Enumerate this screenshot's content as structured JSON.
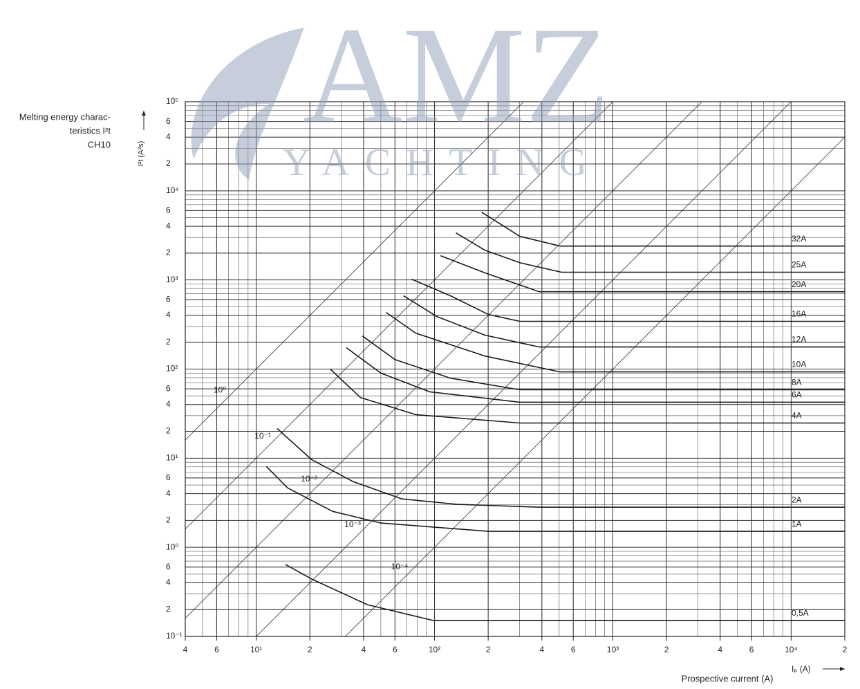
{
  "chart_data": {
    "type": "line",
    "title_lines": [
      "Melting energy charac-",
      "teristics I²t",
      "CH10"
    ],
    "ylabel": "I²t (A²s)",
    "xlabel": "Iₚ (A)",
    "xlabel_note": "Prospective current (A)",
    "watermark": {
      "text": "AMZ",
      "subtext": "YACHTING"
    },
    "xscale": "log",
    "yscale": "log",
    "xlim": [
      4,
      20000
    ],
    "ylim": [
      0.1,
      100000
    ],
    "grid": true,
    "minor_grid": true,
    "xticks": [
      4,
      6,
      {
        "value": 10,
        "label": "10¹"
      },
      {
        "value": 20,
        "label": "2"
      },
      {
        "value": 40,
        "label": "4"
      },
      {
        "value": 60,
        "label": "6"
      },
      {
        "value": 100,
        "label": "10²"
      },
      {
        "value": 200,
        "label": "2"
      },
      {
        "value": 400,
        "label": "4"
      },
      {
        "value": 600,
        "label": "6"
      },
      {
        "value": 1000,
        "label": "10³"
      },
      {
        "value": 2000,
        "label": "2"
      },
      {
        "value": 4000,
        "label": "4"
      },
      {
        "value": 6000,
        "label": "6"
      },
      {
        "value": 10000,
        "label": "10⁴"
      },
      {
        "value": 20000,
        "label": "2"
      }
    ],
    "yticks": [
      {
        "value": 100000,
        "label": "10⁵"
      },
      {
        "value": 60000,
        "label": "6"
      },
      {
        "value": 40000,
        "label": "4"
      },
      {
        "value": 20000,
        "label": "2"
      },
      {
        "value": 10000,
        "label": "10⁴"
      },
      {
        "value": 6000,
        "label": "6"
      },
      {
        "value": 4000,
        "label": "4"
      },
      {
        "value": 2000,
        "label": "2"
      },
      {
        "value": 1000,
        "label": "10³"
      },
      {
        "value": 600,
        "label": "6"
      },
      {
        "value": 400,
        "label": "4"
      },
      {
        "value": 200,
        "label": "2"
      },
      {
        "value": 100,
        "label": "10²"
      },
      {
        "value": 60,
        "label": "6"
      },
      {
        "value": 40,
        "label": "4"
      },
      {
        "value": 20,
        "label": "2"
      },
      {
        "value": 10,
        "label": "10¹"
      },
      6,
      4,
      2,
      {
        "value": 1,
        "label": "10⁰"
      },
      {
        "value": 0.6,
        "label": "6"
      },
      {
        "value": 0.4,
        "label": "4"
      },
      {
        "value": 0.2,
        "label": "2"
      },
      {
        "value": 0.1,
        "label": "10⁻¹"
      }
    ],
    "time_lines": {
      "values": [
        1,
        0.1,
        0.01,
        0.001,
        0.0001
      ],
      "value_labels": [
        "10⁰",
        "10⁻¹",
        "10⁻²",
        "10⁻³",
        "10⁻⁴"
      ],
      "color": "#333333"
    },
    "series": [
      {
        "name": "32A",
        "color": "#1a1a1a",
        "x": [
          184,
          301,
          506,
          20000
        ],
        "values": [
          5750,
          3080,
          2400,
          2400
        ]
      },
      {
        "name": "25A",
        "color": "#1a1a1a",
        "x": [
          132,
          192,
          301,
          515,
          20000
        ],
        "values": [
          3370,
          2150,
          1560,
          1220,
          1220
        ]
      },
      {
        "name": "20A",
        "color": "#1a1a1a",
        "x": [
          108,
          192,
          387,
          20000
        ],
        "values": [
          1870,
          1200,
          738,
          738
        ]
      },
      {
        "name": "16A",
        "color": "#1a1a1a",
        "x": [
          74.5,
          123,
          201,
          301,
          20000
        ],
        "values": [
          1020,
          664,
          409,
          343,
          343
        ]
      },
      {
        "name": "12A",
        "color": "#1a1a1a",
        "x": [
          67,
          103,
          192,
          387,
          20000
        ],
        "values": [
          664,
          388,
          240,
          177,
          177
        ]
      },
      {
        "name": "10A",
        "color": "#1a1a1a",
        "x": [
          53.5,
          78.5,
          192,
          506,
          20000
        ],
        "values": [
          432,
          253,
          140,
          93,
          93
        ]
      },
      {
        "name": "8A",
        "color": "#1a1a1a",
        "x": [
          39.4,
          60,
          123,
          301,
          20000
        ],
        "values": [
          235,
          128,
          79,
          58.5,
          58.5
        ]
      },
      {
        "name": "6A",
        "color": "#1a1a1a",
        "x": [
          32,
          50,
          94,
          301,
          20000
        ],
        "values": [
          174,
          90,
          55.5,
          42.5,
          42.5
        ]
      },
      {
        "name": "4A",
        "color": "#1a1a1a",
        "x": [
          26,
          38.4,
          78.5,
          301,
          20000
        ],
        "values": [
          100,
          48,
          30.8,
          24.8,
          24.8
        ]
      },
      {
        "name": "2A",
        "color": "#1a1a1a",
        "x": [
          13.1,
          20.5,
          35,
          65.6,
          134,
          394,
          20000
        ],
        "values": [
          21.5,
          9.6,
          5.45,
          3.49,
          3.03,
          2.82,
          2.82
        ]
      },
      {
        "name": "1A",
        "color": "#1a1a1a",
        "x": [
          11.4,
          15,
          26.8,
          50,
          201,
          20000
        ],
        "values": [
          8.07,
          4.64,
          2.53,
          1.87,
          1.51,
          1.51
        ]
      },
      {
        "name": "0,5A",
        "color": "#1a1a1a",
        "x": [
          14.6,
          20.5,
          42,
          98,
          20000
        ],
        "values": [
          0.64,
          0.44,
          0.227,
          0.151,
          0.151
        ]
      }
    ]
  }
}
